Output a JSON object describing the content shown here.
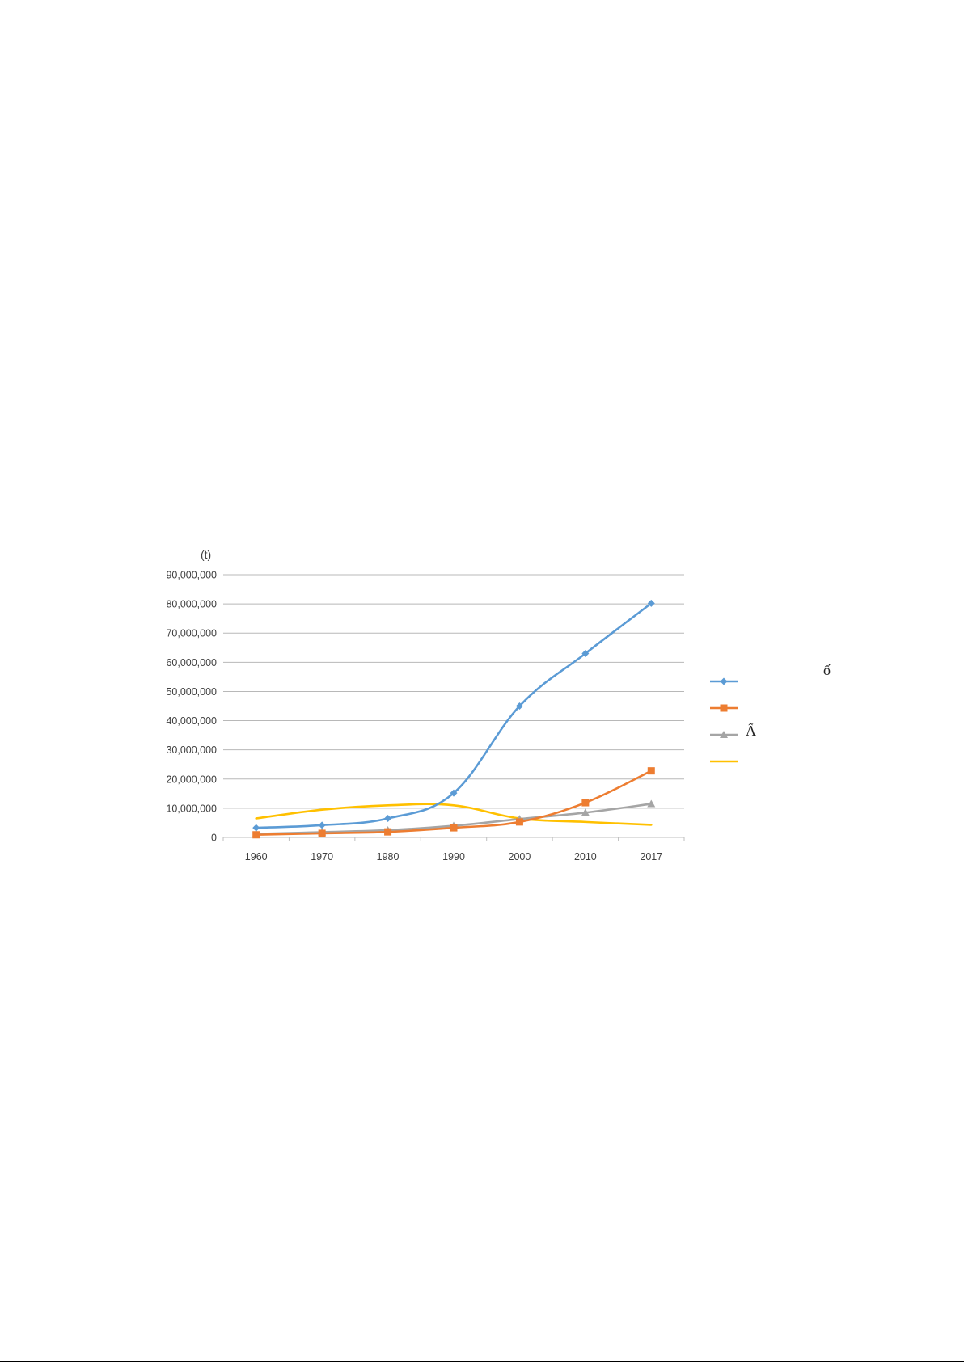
{
  "chart_data": {
    "type": "line",
    "unit_label": "(t)",
    "categories": [
      "1960",
      "1970",
      "1980",
      "1990",
      "2000",
      "2010",
      "2017"
    ],
    "ylim": [
      0,
      90000000
    ],
    "yticks": [
      0,
      10000000,
      20000000,
      30000000,
      40000000,
      50000000,
      60000000,
      70000000,
      80000000,
      90000000
    ],
    "ytick_labels": [
      "0",
      "10,000,000",
      "20,000,000",
      "30,000,000",
      "40,000,000",
      "50,000,000",
      "60,000,000",
      "70,000,000",
      "80,000,000",
      "90,000,000"
    ],
    "grid": true,
    "legend_position": "right",
    "series": [
      {
        "legend_text": "ố",
        "color": "#5B9BD5",
        "marker": "diamond",
        "values": [
          3300000,
          4200000,
          6500000,
          15200000,
          45000000,
          63000000,
          80200000
        ]
      },
      {
        "legend_text": "",
        "color": "#ED7D31",
        "marker": "square",
        "values": [
          900000,
          1400000,
          1900000,
          3300000,
          5300000,
          11900000,
          22800000
        ]
      },
      {
        "legend_text": "Ấ",
        "color": "#A5A5A5",
        "marker": "triangle",
        "values": [
          1200000,
          1800000,
          2500000,
          4000000,
          6300000,
          8500000,
          11500000
        ]
      },
      {
        "legend_text": "",
        "color": "#FFC000",
        "marker": "none",
        "values": [
          6500000,
          9500000,
          11000000,
          11000000,
          6500000,
          5300000,
          4300000
        ]
      }
    ]
  }
}
